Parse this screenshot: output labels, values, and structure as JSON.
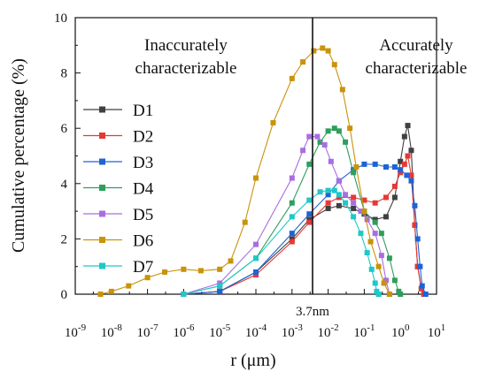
{
  "chart_data": {
    "type": "line",
    "title": "",
    "xlabel": "r (μm)",
    "ylabel": "Cumulative percentage (%)",
    "x_scale": "log",
    "xlim": [
      1e-09,
      10
    ],
    "ylim": [
      0,
      10
    ],
    "x_ticks": [
      {
        "value": 1e-09,
        "base": "10",
        "exp": "-9"
      },
      {
        "value": 1e-08,
        "base": "10",
        "exp": "-8"
      },
      {
        "value": 1e-07,
        "base": "10",
        "exp": "-7"
      },
      {
        "value": 1e-06,
        "base": "10",
        "exp": "-6"
      },
      {
        "value": 1e-05,
        "base": "10",
        "exp": "-5"
      },
      {
        "value": 0.0001,
        "base": "10",
        "exp": "-4"
      },
      {
        "value": 0.001,
        "base": "10",
        "exp": "-3"
      },
      {
        "value": 0.01,
        "base": "10",
        "exp": "-2"
      },
      {
        "value": 0.1,
        "base": "10",
        "exp": "-1"
      },
      {
        "value": 1,
        "base": "10",
        "exp": "0"
      },
      {
        "value": 10,
        "base": "10",
        "exp": "1"
      }
    ],
    "y_ticks": [
      0,
      2,
      4,
      6,
      8,
      10
    ],
    "grid": false,
    "legend_position": "left-center",
    "annotations": {
      "vline_x": 0.0037,
      "vline_label": "3.7nm",
      "left_region_label": [
        "Inaccurately",
        "characterizable"
      ],
      "right_region_label": [
        "Accurately",
        "characterizable"
      ]
    },
    "series": [
      {
        "name": "D1",
        "color": "#404040",
        "marker": "square",
        "x": [
          1e-06,
          1e-05,
          0.0001,
          0.001,
          0.003,
          0.01,
          0.02,
          0.05,
          0.1,
          0.2,
          0.4,
          0.7,
          1.0,
          1.3,
          1.6,
          2.0,
          2.5,
          3.0,
          3.8,
          4.5
        ],
        "y": [
          0,
          0.1,
          0.8,
          2.0,
          2.7,
          3.1,
          3.2,
          3.1,
          2.9,
          2.7,
          2.8,
          3.5,
          4.8,
          5.7,
          6.1,
          5.2,
          2.5,
          1.0,
          0.2,
          0
        ]
      },
      {
        "name": "D2",
        "color": "#e53935",
        "marker": "square",
        "x": [
          1e-06,
          1e-05,
          0.0001,
          0.001,
          0.003,
          0.01,
          0.02,
          0.05,
          0.1,
          0.2,
          0.4,
          0.7,
          1.0,
          1.3,
          1.6,
          2.0,
          2.5,
          3.0,
          3.8,
          4.5
        ],
        "y": [
          0,
          0.1,
          0.7,
          1.9,
          2.6,
          3.3,
          3.5,
          3.5,
          3.4,
          3.3,
          3.5,
          3.9,
          4.4,
          4.7,
          5.0,
          4.3,
          2.5,
          1.0,
          0.2,
          0
        ]
      },
      {
        "name": "D3",
        "color": "#1e63d6",
        "marker": "square",
        "x": [
          1e-06,
          1e-05,
          0.0001,
          0.001,
          0.003,
          0.01,
          0.02,
          0.05,
          0.1,
          0.2,
          0.4,
          0.7,
          1.0,
          1.5,
          2.0,
          2.5,
          3.0,
          3.5,
          4.0,
          5.0
        ],
        "y": [
          0,
          0.1,
          0.8,
          2.2,
          2.9,
          3.6,
          4.1,
          4.5,
          4.7,
          4.7,
          4.6,
          4.6,
          4.5,
          4.3,
          4.1,
          3.2,
          2.0,
          1.0,
          0.3,
          0
        ]
      },
      {
        "name": "D4",
        "color": "#2e9e5e",
        "marker": "square",
        "x": [
          1e-06,
          1e-05,
          0.0001,
          0.001,
          0.003,
          0.006,
          0.01,
          0.015,
          0.02,
          0.03,
          0.05,
          0.1,
          0.2,
          0.3,
          0.5,
          0.7,
          0.9,
          1.0
        ],
        "y": [
          0,
          0.3,
          1.3,
          3.3,
          4.7,
          5.5,
          5.9,
          6.0,
          5.9,
          5.5,
          4.4,
          3.0,
          2.6,
          2.2,
          1.3,
          0.5,
          0.1,
          0
        ]
      },
      {
        "name": "D5",
        "color": "#a86ee0",
        "marker": "square",
        "x": [
          1e-06,
          1e-05,
          0.0001,
          0.001,
          0.002,
          0.003,
          0.005,
          0.008,
          0.012,
          0.02,
          0.03,
          0.05,
          0.08,
          0.12,
          0.2,
          0.3,
          0.4,
          0.5
        ],
        "y": [
          0,
          0.4,
          1.8,
          4.2,
          5.2,
          5.7,
          5.7,
          5.4,
          4.8,
          4.1,
          3.6,
          3.3,
          3.0,
          2.7,
          2.2,
          1.4,
          0.5,
          0
        ]
      },
      {
        "name": "D6",
        "color": "#c9930a",
        "marker": "square",
        "x": [
          5e-09,
          1e-08,
          3e-08,
          1e-07,
          3e-07,
          1e-06,
          3e-06,
          1e-05,
          2e-05,
          5e-05,
          0.0001,
          0.0003,
          0.001,
          0.002,
          0.004,
          0.007,
          0.01,
          0.015,
          0.025,
          0.04,
          0.06,
          0.1,
          0.15,
          0.25,
          0.35,
          0.5
        ],
        "y": [
          0,
          0.1,
          0.3,
          0.6,
          0.8,
          0.9,
          0.85,
          0.9,
          1.2,
          2.6,
          4.2,
          6.2,
          7.8,
          8.4,
          8.8,
          8.9,
          8.8,
          8.3,
          7.4,
          6.0,
          4.6,
          3.0,
          1.9,
          1.0,
          0.4,
          0
        ]
      },
      {
        "name": "D7",
        "color": "#1ec8c8",
        "marker": "square",
        "x": [
          1e-06,
          1e-05,
          0.0001,
          0.001,
          0.003,
          0.006,
          0.01,
          0.015,
          0.02,
          0.03,
          0.05,
          0.08,
          0.12,
          0.16,
          0.2,
          0.22,
          0.25
        ],
        "y": [
          0,
          0.3,
          1.3,
          2.8,
          3.4,
          3.7,
          3.75,
          3.75,
          3.6,
          3.3,
          2.8,
          2.2,
          1.5,
          0.9,
          0.4,
          0.1,
          0
        ]
      }
    ]
  }
}
